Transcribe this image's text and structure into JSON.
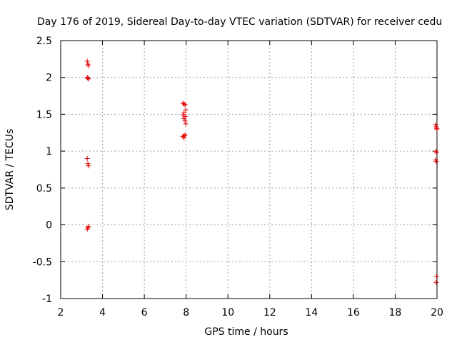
{
  "chart_data": {
    "type": "scatter",
    "title": "Day 176 of 2019, Sidereal Day-to-day VTEC variation (SDTVAR) for receiver cedu",
    "xlabel": "GPS time / hours",
    "ylabel": "SDTVAR / TECUs",
    "xlim": [
      2,
      20
    ],
    "ylim": [
      -1,
      2.5
    ],
    "xticks": [
      "2",
      "4",
      "6",
      "8",
      "10",
      "12",
      "14",
      "16",
      "18",
      "20"
    ],
    "yticks": [
      "-1",
      "-0.5",
      "0",
      "0.5",
      "1",
      "1.5",
      "2",
      "2.5"
    ],
    "grid": true,
    "marker": "+",
    "color": "#e00000",
    "series": [
      {
        "points": [
          [
            3.27,
            2.22
          ],
          [
            3.3,
            2.18
          ],
          [
            3.33,
            2.16
          ],
          [
            3.27,
            2.0
          ],
          [
            3.3,
            1.99
          ],
          [
            3.33,
            1.98
          ],
          [
            3.27,
            0.9
          ],
          [
            3.3,
            0.83
          ],
          [
            3.33,
            0.8
          ],
          [
            3.33,
            -0.02
          ],
          [
            3.3,
            -0.04
          ],
          [
            3.27,
            -0.06
          ],
          [
            7.85,
            1.65
          ],
          [
            7.9,
            1.64
          ],
          [
            7.95,
            1.63
          ],
          [
            7.98,
            1.56
          ],
          [
            7.9,
            1.52
          ],
          [
            7.85,
            1.49
          ],
          [
            7.95,
            1.47
          ],
          [
            7.9,
            1.44
          ],
          [
            7.95,
            1.41
          ],
          [
            7.98,
            1.37
          ],
          [
            7.95,
            1.22
          ],
          [
            7.9,
            1.21
          ],
          [
            7.85,
            1.2
          ],
          [
            7.9,
            1.18
          ],
          [
            19.93,
            1.36
          ],
          [
            19.96,
            1.33
          ],
          [
            19.98,
            1.31
          ],
          [
            20.0,
            1.3
          ],
          [
            19.95,
            1.0
          ],
          [
            19.98,
            0.98
          ],
          [
            19.93,
            0.88
          ],
          [
            19.97,
            0.86
          ],
          [
            19.98,
            -0.7
          ],
          [
            19.96,
            -0.78
          ]
        ]
      }
    ]
  }
}
